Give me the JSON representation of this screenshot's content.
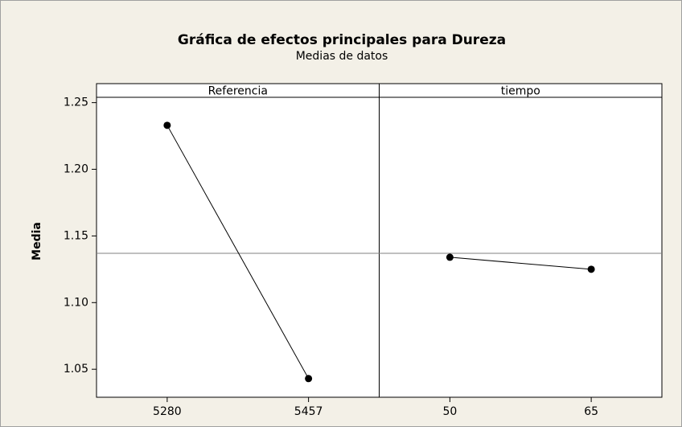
{
  "chart_data": {
    "type": "line",
    "title": "Gráfica de efectos principales para Dureza",
    "subtitle": "Medias de datos",
    "ylabel": "Media",
    "ylim": [
      1.029,
      1.254
    ],
    "yticks": [
      1.05,
      {
        "value": 1.1,
        "label": "1.10"
      },
      1.15,
      {
        "value": 1.2,
        "label": "1.20"
      },
      1.25
    ],
    "mean_line": 1.137,
    "color": "#000000",
    "panels": [
      {
        "name": "Referencia",
        "categories": [
          "5280",
          "5457"
        ],
        "values": [
          1.233,
          1.043
        ]
      },
      {
        "name": "tiempo",
        "categories": [
          "50",
          "65"
        ],
        "values": [
          1.134,
          1.125
        ]
      }
    ]
  }
}
